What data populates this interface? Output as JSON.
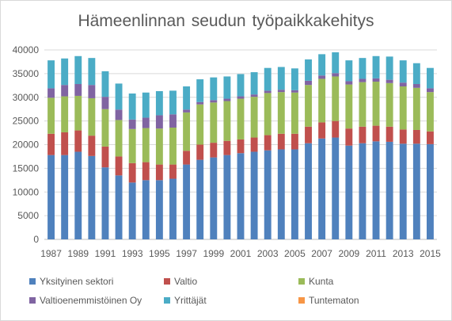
{
  "chart_data": {
    "type": "bar",
    "stacked": true,
    "title": "Hämeenlinnan  seudun työpaikkakehitys",
    "xlabel": "",
    "ylabel": "",
    "ylim": [
      0,
      40000
    ],
    "yticks": [
      0,
      5000,
      10000,
      15000,
      20000,
      25000,
      30000,
      35000,
      40000
    ],
    "grid": true,
    "legend_position": "bottom",
    "categories": [
      "1987",
      "1988",
      "1989",
      "1990",
      "1991",
      "1992",
      "1993",
      "1994",
      "1995",
      "1996",
      "1997",
      "1998",
      "1999",
      "2000",
      "2001",
      "2002",
      "2003",
      "2004",
      "2005",
      "2006",
      "2007",
      "2008",
      "2009",
      "2010",
      "2011",
      "2012",
      "2013",
      "2014",
      "2015"
    ],
    "x_tick_labels": [
      "1987",
      "1989",
      "1991",
      "1993",
      "1995",
      "1997",
      "1999",
      "2001",
      "2003",
      "2005",
      "2007",
      "2009",
      "2011",
      "2013",
      "2015"
    ],
    "series": [
      {
        "name": "Yksityinen sektori",
        "color": "#4f81bd",
        "values": [
          17800,
          17800,
          18500,
          17600,
          15200,
          13500,
          12000,
          12500,
          12500,
          12800,
          15800,
          16800,
          17300,
          17800,
          18200,
          18500,
          18800,
          19000,
          19000,
          20300,
          21300,
          21500,
          19800,
          20300,
          20700,
          20600,
          20200,
          20200,
          20100
        ]
      },
      {
        "name": "Valtio",
        "color": "#c0504d",
        "values": [
          4500,
          4800,
          4500,
          4300,
          4400,
          4000,
          4100,
          3800,
          3300,
          3000,
          2900,
          3200,
          3100,
          3000,
          2900,
          3000,
          3200,
          3300,
          3300,
          3500,
          3400,
          3500,
          3600,
          3500,
          3300,
          3200,
          3000,
          2900,
          2700
        ]
      },
      {
        "name": "Kunta",
        "color": "#9bbb59",
        "values": [
          7600,
          7600,
          7300,
          7900,
          7900,
          7700,
          7200,
          7200,
          7600,
          7800,
          8100,
          8500,
          8500,
          8400,
          8600,
          8600,
          8900,
          8800,
          8700,
          8800,
          9200,
          9400,
          9300,
          9400,
          9300,
          9200,
          9100,
          8900,
          8300
        ]
      },
      {
        "name": "Valtioenemmistöinen Oy",
        "color": "#8064a2",
        "values": [
          2000,
          2400,
          2500,
          2800,
          2600,
          2200,
          2000,
          2200,
          2800,
          2800,
          600,
          500,
          500,
          500,
          500,
          500,
          500,
          500,
          500,
          900,
          700,
          700,
          700,
          700,
          700,
          700,
          800,
          800,
          800
        ]
      },
      {
        "name": "Yrittäjät",
        "color": "#4bacc6",
        "values": [
          5900,
          5600,
          5900,
          5700,
          5400,
          5500,
          5500,
          5300,
          5100,
          5000,
          4900,
          4800,
          4800,
          4700,
          4700,
          4700,
          4800,
          4800,
          4600,
          4500,
          4500,
          4400,
          4400,
          4400,
          4700,
          4900,
          4700,
          4400,
          4300
        ]
      },
      {
        "name": "Tuntematon",
        "color": "#f79646",
        "values": [
          0,
          0,
          0,
          0,
          0,
          0,
          0,
          0,
          0,
          0,
          0,
          0,
          0,
          0,
          0,
          0,
          0,
          0,
          0,
          0,
          0,
          0,
          0,
          0,
          0,
          0,
          0,
          0,
          0
        ]
      }
    ]
  }
}
